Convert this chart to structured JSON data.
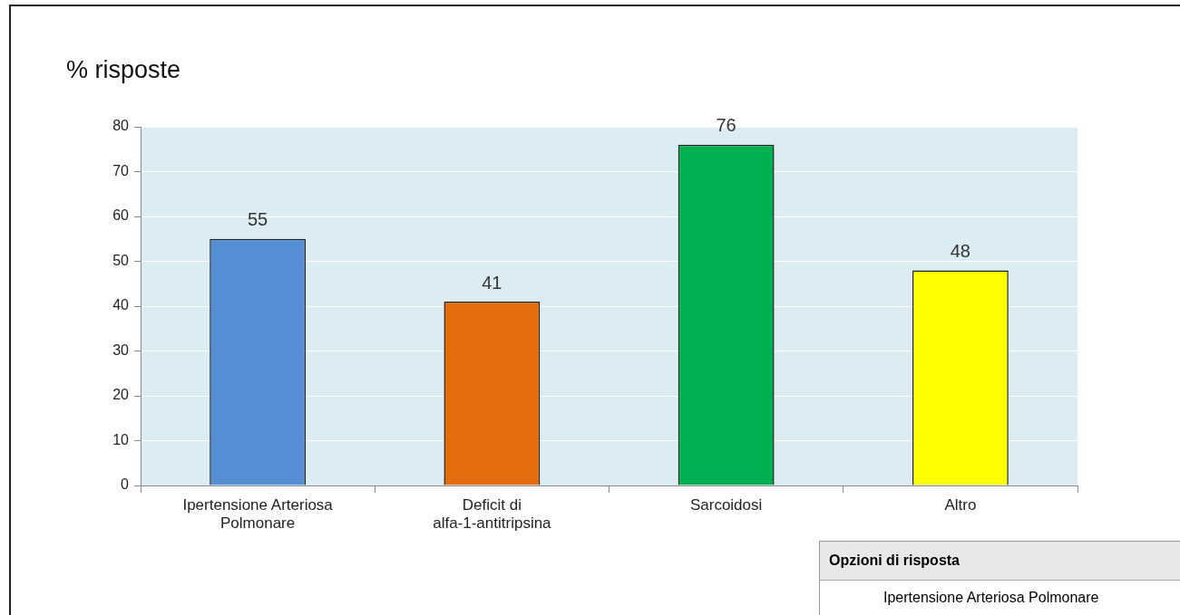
{
  "chart_data": {
    "type": "bar",
    "title": "% risposte",
    "categories": [
      "Ipertensione Arteriosa Polmonare",
      "Deficit di alfa-1-antitripsina",
      "Sarcoidosi",
      "Altro"
    ],
    "values": [
      55,
      41,
      76,
      48
    ],
    "colors": [
      "#558ed5",
      "#e46c0a",
      "#00b050",
      "#ffff00"
    ],
    "ylim": [
      0,
      80
    ],
    "yticks": [
      0,
      10,
      20,
      30,
      40,
      50,
      60,
      70,
      80
    ],
    "grid": "y",
    "data_labels": true,
    "legend": false,
    "annotations": [
      "Opzioni di risposta",
      "Ipertensione Arteriosa Polmonare"
    ]
  }
}
